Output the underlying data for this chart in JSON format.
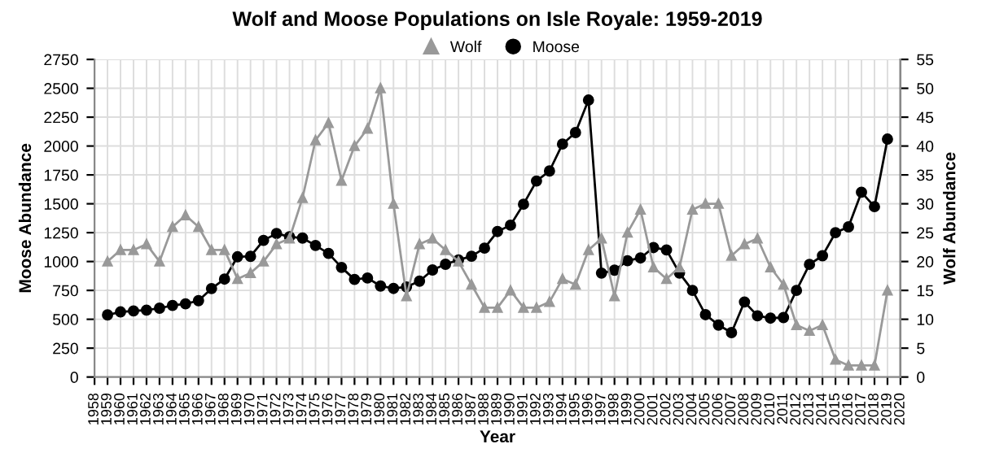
{
  "chart_data": {
    "type": "line",
    "title": "Wolf and Moose Populations on Isle Royale: 1959-2019",
    "xlabel": "Year",
    "ylabel": "Moose Abundance",
    "y2label": "Wolf Abundance",
    "x": [
      1959,
      1960,
      1961,
      1962,
      1963,
      1964,
      1965,
      1966,
      1967,
      1968,
      1969,
      1970,
      1971,
      1972,
      1973,
      1974,
      1975,
      1976,
      1977,
      1978,
      1979,
      1980,
      1981,
      1982,
      1983,
      1984,
      1985,
      1986,
      1987,
      1988,
      1989,
      1990,
      1991,
      1992,
      1993,
      1994,
      1995,
      1996,
      1997,
      1998,
      1999,
      2000,
      2001,
      2002,
      2003,
      2004,
      2005,
      2006,
      2007,
      2008,
      2009,
      2010,
      2011,
      2012,
      2013,
      2014,
      2015,
      2016,
      2017,
      2018,
      2019
    ],
    "series": [
      {
        "name": "Wolf",
        "color": "#999999",
        "marker": "triangle",
        "axis": "y2",
        "values": [
          20,
          22,
          22,
          23,
          20,
          26,
          28,
          26,
          22,
          22,
          17,
          18,
          20,
          23,
          24,
          31,
          41,
          44,
          34,
          40,
          43,
          50,
          30,
          14,
          23,
          24,
          22,
          20,
          16,
          12,
          12,
          15,
          12,
          12,
          13,
          17,
          16,
          22,
          24,
          14,
          25,
          29,
          19,
          17,
          19,
          29,
          30,
          30,
          21,
          23,
          24,
          19,
          16,
          9,
          8,
          9,
          3,
          2,
          2,
          2,
          15
        ]
      },
      {
        "name": "Moose",
        "color": "#000000",
        "marker": "circle",
        "values": [
          538,
          564,
          572,
          579,
          596,
          620,
          634,
          661,
          766,
          848,
          1041,
          1045,
          1183,
          1243,
          1215,
          1203,
          1139,
          1070,
          949,
          845,
          857,
          788,
          767,
          780,
          830,
          927,
          976,
          1014,
          1046,
          1116,
          1260,
          1315,
          1496,
          1697,
          1784,
          2017,
          2117,
          2398,
          900,
          925,
          1007,
          1031,
          1121,
          1100,
          900,
          750,
          540,
          450,
          385,
          650,
          530,
          510,
          515,
          750,
          975,
          1050,
          1250,
          1300,
          1600,
          1475,
          2060
        ]
      }
    ],
    "xlim": [
      1958,
      2020
    ],
    "xticks": [
      1958,
      1959,
      1960,
      1961,
      1962,
      1963,
      1964,
      1965,
      1966,
      1967,
      1968,
      1969,
      1970,
      1971,
      1972,
      1973,
      1974,
      1975,
      1976,
      1977,
      1978,
      1979,
      1980,
      1981,
      1982,
      1983,
      1984,
      1985,
      1986,
      1987,
      1988,
      1989,
      1990,
      1991,
      1992,
      1993,
      1994,
      1995,
      1996,
      1997,
      1998,
      1999,
      2000,
      2001,
      2002,
      2003,
      2004,
      2005,
      2006,
      2007,
      2008,
      2009,
      2010,
      2011,
      2012,
      2013,
      2014,
      2015,
      2016,
      2017,
      2018,
      2019,
      2020
    ],
    "ylim": [
      0,
      2750
    ],
    "yticks": [
      0,
      250,
      500,
      750,
      1000,
      1250,
      1500,
      1750,
      2000,
      2250,
      2500,
      2750
    ],
    "y2lim": [
      0,
      55
    ],
    "y2ticks": [
      0,
      5,
      10,
      15,
      20,
      25,
      30,
      35,
      40,
      45,
      50,
      55
    ],
    "grid": true,
    "legend": "top",
    "line_style": "solid"
  }
}
